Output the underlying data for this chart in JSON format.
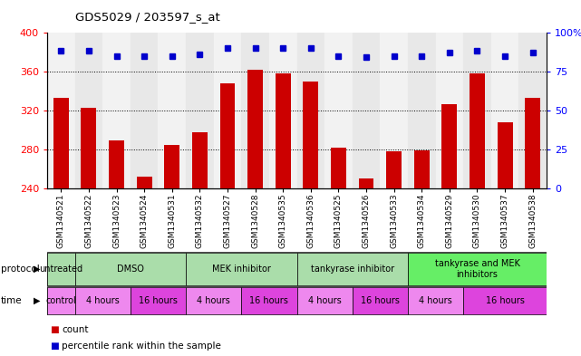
{
  "title": "GDS5029 / 203597_s_at",
  "samples": [
    "GSM1340521",
    "GSM1340522",
    "GSM1340523",
    "GSM1340524",
    "GSM1340531",
    "GSM1340532",
    "GSM1340527",
    "GSM1340528",
    "GSM1340535",
    "GSM1340536",
    "GSM1340525",
    "GSM1340526",
    "GSM1340533",
    "GSM1340534",
    "GSM1340529",
    "GSM1340530",
    "GSM1340537",
    "GSM1340538"
  ],
  "counts": [
    333,
    323,
    289,
    252,
    285,
    298,
    348,
    362,
    358,
    350,
    282,
    250,
    278,
    279,
    326,
    358,
    308,
    333
  ],
  "percentile_ranks": [
    88,
    88,
    85,
    85,
    85,
    86,
    90,
    90,
    90,
    90,
    85,
    84,
    85,
    85,
    87,
    88,
    85,
    87
  ],
  "ylim_left": [
    240,
    400
  ],
  "ylim_right": [
    0,
    100
  ],
  "yticks_left": [
    240,
    280,
    320,
    360,
    400
  ],
  "yticks_right": [
    0,
    25,
    50,
    75,
    100
  ],
  "bar_color": "#cc0000",
  "dot_color": "#0000cc",
  "protocol_groups": [
    {
      "label": "untreated",
      "start": 0,
      "end": 2,
      "color": "#aaddaa"
    },
    {
      "label": "DMSO",
      "start": 2,
      "end": 8,
      "color": "#aaddaa"
    },
    {
      "label": "MEK inhibitor",
      "start": 8,
      "end": 14,
      "color": "#aaddaa"
    },
    {
      "label": "tankyrase inhibitor",
      "start": 14,
      "end": 20,
      "color": "#aaddaa"
    },
    {
      "label": "tankyrase and MEK\ninhibitors",
      "start": 20,
      "end": 28,
      "color": "#55ee55"
    }
  ],
  "time_groups": [
    {
      "label": "control",
      "start": 0,
      "end": 2,
      "color": "#ee88ee"
    },
    {
      "label": "4 hours",
      "start": 2,
      "end": 6,
      "color": "#ee88ee"
    },
    {
      "label": "16 hours",
      "start": 6,
      "end": 10,
      "color": "#ee44ee"
    },
    {
      "label": "4 hours",
      "start": 10,
      "end": 14,
      "color": "#ee88ee"
    },
    {
      "label": "16 hours",
      "start": 14,
      "end": 18,
      "color": "#ee44ee"
    },
    {
      "label": "4 hours",
      "start": 18,
      "end": 22,
      "color": "#ee88ee"
    },
    {
      "label": "16 hours",
      "start": 22,
      "end": 26,
      "color": "#ee44ee"
    },
    {
      "label": "4 hours",
      "start": 26,
      "end": 30,
      "color": "#ee88ee"
    },
    {
      "label": "16 hours",
      "start": 30,
      "end": 36,
      "color": "#ee44ee"
    }
  ]
}
